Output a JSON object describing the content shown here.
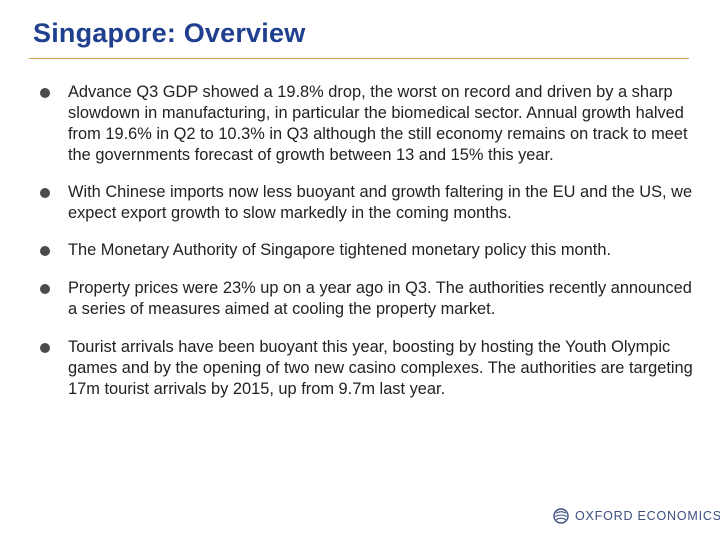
{
  "slide": {
    "title": "Singapore: Overview",
    "bullets": [
      "Advance Q3 GDP showed a 19.8% drop, the worst on record and driven by a sharp slowdown in manufacturing, in particular the biomedical sector. Annual growth halved from 19.6% in Q2 to 10.3% in Q3 although the still economy remains on track to meet the governments forecast of growth between 13 and 15% this year.",
      "With Chinese imports now less buoyant and growth faltering in the EU and the US, we expect export growth to slow markedly in the coming months.",
      "The Monetary Authority of Singapore tightened monetary policy this month.",
      "Property prices were 23% up on a year ago in Q3. The authorities recently announced a series of measures aimed at cooling the property market.",
      "Tourist arrivals have been buoyant this year, boosting by hosting the Youth Olympic games and by the opening of two new casino complexes. The authorities are targeting 17m tourist arrivals by 2015, up from 9.7m last year."
    ]
  },
  "footer": {
    "logo_text": "OXFORD ECONOMICS",
    "logo_icon": "globe-icon"
  },
  "colors": {
    "title": "#1f3f8f",
    "rule": "#c8a24b",
    "bullet": "#4b4b4b",
    "body_text": "#222222",
    "logo": "#3b4f7f"
  }
}
